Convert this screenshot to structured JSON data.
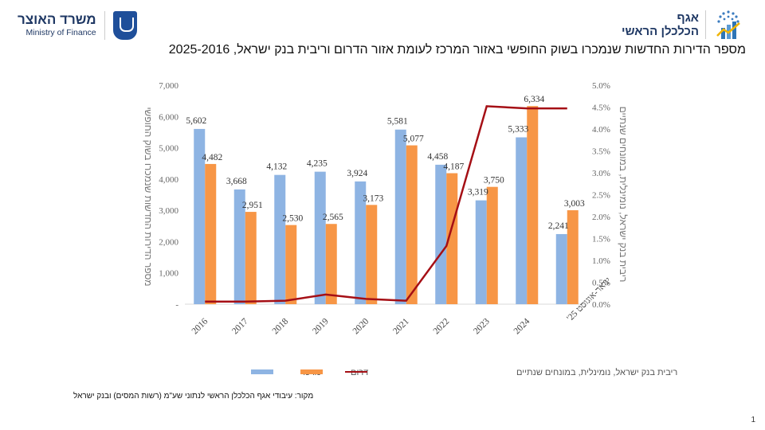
{
  "header": {
    "ministry_he": "משרד האוצר",
    "ministry_en": "Ministry of Finance",
    "dept_line1": "אגף",
    "dept_line2": "הכלכלן הראשי"
  },
  "title": "מספר הדירות החדשות שנמכרו בשוק החופשי באזור המרכז לעומת אזור הדרום וריבית בנק ישראל, 2025-2016",
  "source": "מקור: עיבודי אגף הכלכלן הראשי לנתוני שע\"מ (רשות המסים) ובנק ישראל",
  "page_number": "1",
  "colors": {
    "center": "#8eb4e3",
    "south": "#f79646",
    "rate": "#a50f15"
  },
  "chart_data": {
    "type": "bar",
    "title": "מספר הדירות החדשות שנמכרו בשוק החופשי באזור המרכז לעומת אזור הדרום וריבית בנק ישראל, 2025-2016",
    "categories": [
      "2016",
      "2017",
      "2018",
      "2019",
      "2020",
      "2021",
      "2022",
      "2023",
      "2024",
      "ינואר-אוגוסט 25'"
    ],
    "series": [
      {
        "name": "מרכז",
        "type": "bar",
        "axis": "left",
        "values": [
          5602,
          3668,
          4132,
          4235,
          3924,
          5581,
          4458,
          3319,
          5333,
          2241
        ],
        "labels": [
          "5,602",
          "3,668",
          "4,132",
          "4,235",
          "3,924",
          "5,581",
          "4,458",
          "3,319",
          "5,333",
          "2,241"
        ]
      },
      {
        "name": "דרום",
        "type": "bar",
        "axis": "left",
        "values": [
          4482,
          2951,
          2530,
          2565,
          3173,
          5077,
          4187,
          3750,
          6334,
          3003
        ],
        "labels": [
          "4,482",
          "2,951",
          "2,530",
          "2,565",
          "3,173",
          "5,077",
          "4,187",
          "3,750",
          "6,334",
          "3,003"
        ]
      },
      {
        "name": "ריבית בנק ישראל, נומינלית, במונחים שנתיים",
        "type": "line",
        "axis": "right",
        "values": [
          0.06,
          0.06,
          0.08,
          0.22,
          0.12,
          0.08,
          1.33,
          4.52,
          4.47,
          4.47
        ]
      }
    ],
    "ylabel": "מספר הדירות החדשות שנמכרו בשוק החופשי",
    "y2label": "ריבית בנק ישראל, נומינלית, במונחים שנתיים",
    "ylim": [
      0,
      7000
    ],
    "y2lim": [
      0,
      5.0
    ],
    "yticks": [
      "-",
      "1,000",
      "2,000",
      "3,000",
      "4,000",
      "5,000",
      "6,000",
      "7,000"
    ],
    "y2ticks": [
      "0.0%",
      "0.5%",
      "1.0%",
      "1.5%",
      "2.0%",
      "2.5%",
      "3.0%",
      "3.5%",
      "4.0%",
      "4.5%",
      "5.0%"
    ],
    "grid": false,
    "legend": "bottom",
    "legend_items": [
      "ריבית בנק ישראל, נומינלית, במונחים שנתיים",
      "דרום",
      "מרכז"
    ]
  }
}
